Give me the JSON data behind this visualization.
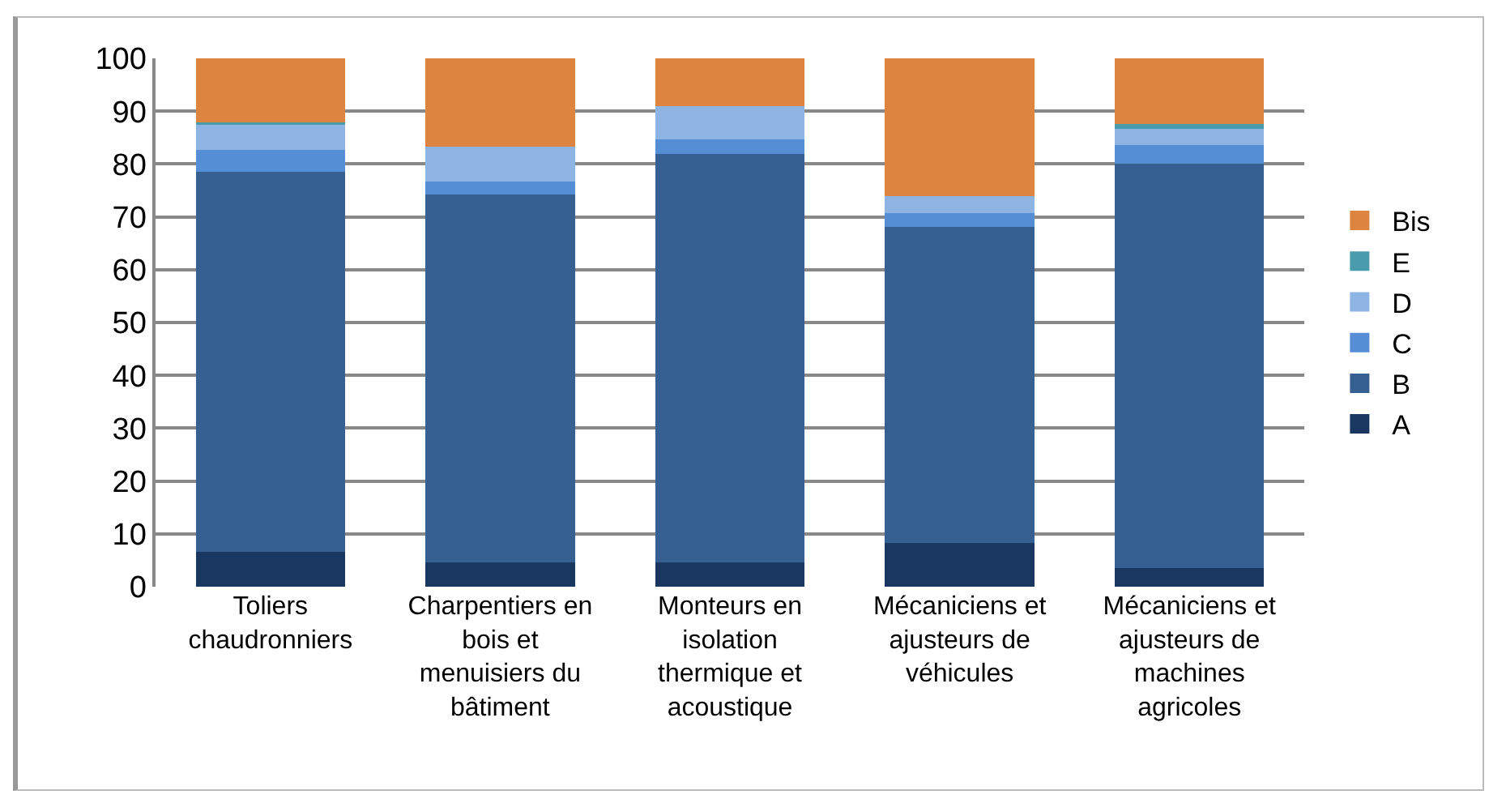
{
  "chart_data": {
    "type": "bar",
    "stacked": true,
    "categories": [
      "Toliers chaudronniers",
      "Charpentiers en bois et menuisiers du bâtiment",
      "Monteurs en isolation thermique et acoustique",
      "Mécaniciens et ajusteurs de véhicules",
      "Mécaniciens et ajusteurs de machines agricoles"
    ],
    "series": [
      {
        "name": "A",
        "color": "#1a3761",
        "values": [
          6.6,
          4.6,
          4.6,
          8.3,
          3.6
        ]
      },
      {
        "name": "B",
        "color": "#366092",
        "values": [
          72.0,
          69.7,
          77.3,
          59.8,
          76.4
        ]
      },
      {
        "name": "C",
        "color": "#558ed5",
        "values": [
          4.0,
          2.4,
          2.7,
          2.6,
          3.6
        ]
      },
      {
        "name": "D",
        "color": "#8eb4e3",
        "values": [
          5.1,
          6.6,
          6.3,
          3.3,
          3.0
        ]
      },
      {
        "name": "E",
        "color": "#4a9bab",
        "values": [
          0.2,
          0,
          0,
          0,
          1.0
        ]
      },
      {
        "name": "Bis",
        "color": "#dd8440",
        "values": [
          12.1,
          16.7,
          9.1,
          26.0,
          12.4
        ]
      }
    ],
    "ylim": [
      0,
      100
    ],
    "yticks": [
      0,
      10,
      20,
      30,
      40,
      50,
      60,
      70,
      80,
      90,
      100
    ],
    "grid": "y",
    "legend": "right"
  }
}
